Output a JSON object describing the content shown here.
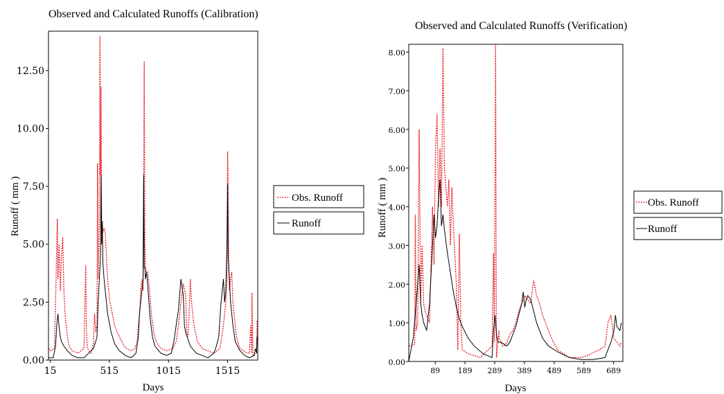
{
  "chart_data": [
    {
      "type": "line",
      "title": "Observed and Calculated Runoffs (Calibration)",
      "xlabel": "Days",
      "ylabel": "Runoff ( mm )",
      "xlim": [
        0,
        1770
      ],
      "ylim": [
        0,
        14.2
      ],
      "x_ticks": [
        15,
        515,
        1015,
        1515
      ],
      "x_tick_labels": [
        "15",
        "515",
        "1015",
        "1515"
      ],
      "y_ticks": [
        0,
        2.5,
        5,
        7.5,
        10,
        12.5
      ],
      "y_tick_labels": [
        "0.00",
        "2.50",
        "5.00",
        "7.50",
        "10.00",
        "12.50"
      ],
      "legend_position": "right",
      "series": [
        {
          "name": "Obs. Runoff",
          "color": "#e8141b",
          "style": "dotted",
          "x": [
            0,
            20,
            50,
            60,
            75,
            80,
            90,
            100,
            110,
            120,
            130,
            140,
            150,
            160,
            175,
            200,
            250,
            300,
            315,
            320,
            325,
            330,
            360,
            380,
            390,
            400,
            410,
            415,
            420,
            430,
            435,
            440,
            445,
            450,
            455,
            460,
            470,
            480,
            490,
            500,
            520,
            540,
            560,
            580,
            600,
            620,
            640,
            660,
            700,
            730,
            750,
            760,
            770,
            780,
            790,
            800,
            810,
            815,
            820,
            830,
            840,
            850,
            870,
            890,
            910,
            950,
            1000,
            1050,
            1080,
            1100,
            1120,
            1140,
            1160,
            1170,
            1180,
            1190,
            1200,
            1210,
            1230,
            1260,
            1300,
            1350,
            1400,
            1450,
            1480,
            1500,
            1510,
            1515,
            1520,
            1525,
            1530,
            1540,
            1550,
            1560,
            1570,
            1580,
            1590,
            1600,
            1620,
            1650,
            1680,
            1700,
            1710,
            1720,
            1721,
            1730,
            1760,
            1765
          ],
          "values": [
            0.5,
            0.4,
            0.5,
            2.5,
            6.1,
            3.5,
            5.0,
            3.0,
            4.5,
            5.3,
            3.0,
            2.0,
            1.5,
            1.0,
            0.6,
            0.4,
            0.3,
            0.5,
            4.1,
            1.5,
            0.8,
            0.5,
            0.3,
            0.7,
            2.0,
            1.2,
            1.5,
            8.5,
            3.5,
            5.8,
            14.0,
            8.0,
            11.8,
            5.0,
            6.0,
            5.5,
            5.7,
            5.5,
            4.5,
            3.5,
            2.5,
            2.0,
            1.5,
            1.2,
            1.0,
            0.8,
            0.6,
            0.5,
            0.4,
            0.5,
            0.8,
            1.5,
            2.0,
            3.0,
            3.5,
            3.0,
            12.9,
            5.0,
            4.0,
            3.8,
            3.8,
            3.3,
            2.0,
            1.2,
            0.8,
            0.5,
            0.4,
            0.5,
            0.8,
            1.5,
            2.5,
            3.3,
            2.8,
            1.2,
            1.0,
            2.0,
            3.5,
            2.5,
            1.5,
            0.8,
            0.5,
            0.4,
            0.3,
            0.5,
            1.5,
            2.5,
            3.5,
            9.0,
            7.8,
            4.0,
            3.0,
            3.5,
            3.8,
            2.5,
            2.0,
            1.5,
            1.0,
            0.8,
            0.5,
            0.4,
            0.3,
            0.3,
            1.5,
            0.3,
            2.9,
            0.2,
            0.3,
            1.7
          ]
        },
        {
          "name": "Runoff",
          "color": "#000000",
          "style": "solid",
          "x": [
            0,
            40,
            60,
            70,
            80,
            90,
            100,
            110,
            130,
            160,
            200,
            250,
            300,
            320,
            340,
            360,
            380,
            400,
            410,
            420,
            430,
            440,
            445,
            450,
            455,
            460,
            470,
            480,
            500,
            530,
            560,
            600,
            650,
            700,
            740,
            760,
            770,
            780,
            790,
            800,
            805,
            810,
            815,
            820,
            830,
            840,
            850,
            860,
            880,
            900,
            950,
            1000,
            1040,
            1060,
            1080,
            1100,
            1120,
            1140,
            1150,
            1160,
            1180,
            1200,
            1250,
            1300,
            1350,
            1400,
            1420,
            1440,
            1460,
            1480,
            1490,
            1500,
            1510,
            1515,
            1520,
            1525,
            1530,
            1540,
            1560,
            1580,
            1620,
            1660,
            1700,
            1740,
            1750,
            1760,
            1765
          ],
          "values": [
            0.1,
            0.1,
            0.6,
            1.5,
            2.0,
            1.4,
            1.0,
            0.8,
            0.6,
            0.4,
            0.2,
            0.1,
            0.1,
            0.2,
            0.3,
            0.4,
            0.5,
            0.8,
            1.0,
            2.5,
            3.5,
            4.5,
            8.0,
            5.0,
            6.0,
            4.2,
            3.5,
            3.0,
            2.0,
            1.2,
            0.7,
            0.4,
            0.2,
            0.1,
            0.3,
            1.0,
            2.0,
            2.5,
            3.0,
            3.5,
            8.0,
            4.0,
            4.0,
            3.5,
            3.8,
            3.2,
            2.5,
            1.8,
            1.0,
            0.6,
            0.3,
            0.2,
            0.3,
            0.8,
            1.5,
            2.2,
            3.5,
            2.8,
            1.5,
            1.2,
            0.9,
            0.6,
            0.3,
            0.2,
            0.1,
            0.3,
            0.6,
            1.0,
            2.5,
            3.5,
            2.5,
            3.0,
            5.0,
            7.6,
            4.5,
            4.0,
            3.5,
            2.5,
            1.5,
            0.8,
            0.4,
            0.2,
            0.1,
            0.2,
            0.5,
            0.3,
            1.0
          ]
        }
      ]
    },
    {
      "type": "line",
      "title": "Observed and Calculated Runoffs (Verification)",
      "xlabel": "Days",
      "ylabel": "Runoff ( mm )",
      "xlim": [
        0,
        720
      ],
      "ylim": [
        0,
        8.2
      ],
      "x_ticks": [
        89,
        189,
        289,
        389,
        489,
        589,
        689
      ],
      "x_tick_labels": [
        "89",
        "189",
        "289",
        "389",
        "489",
        "589",
        "689"
      ],
      "y_ticks": [
        0,
        1,
        2,
        3,
        4,
        5,
        6,
        7,
        8
      ],
      "y_tick_labels": [
        "0.00",
        "1.00",
        "2.00",
        "3.00",
        "4.00",
        "5.00",
        "6.00",
        "7.00",
        "8.00"
      ],
      "legend_position": "right",
      "series": [
        {
          "name": "Obs. Runoff",
          "color": "#e8141b",
          "style": "dotted",
          "x": [
            0,
            10,
            20,
            22,
            25,
            30,
            35,
            40,
            45,
            50,
            55,
            60,
            70,
            80,
            85,
            90,
            95,
            100,
            105,
            110,
            115,
            120,
            125,
            130,
            135,
            140,
            145,
            150,
            160,
            165,
            170,
            175,
            180,
            200,
            240,
            280,
            285,
            288,
            292,
            295,
            300,
            303,
            305,
            310,
            315,
            320,
            330,
            340,
            350,
            360,
            370,
            380,
            390,
            400,
            410,
            420,
            430,
            440,
            450,
            460,
            470,
            480,
            500,
            540,
            580,
            600,
            640,
            660,
            670,
            680,
            690,
            700,
            710,
            715
          ],
          "values": [
            0.4,
            0.4,
            0.45,
            3.8,
            0.8,
            1.0,
            6.0,
            1.5,
            3.0,
            1.5,
            1.3,
            1.2,
            1.0,
            4.0,
            2.5,
            5.5,
            6.4,
            4.0,
            5.5,
            4.0,
            8.1,
            5.0,
            4.5,
            4.0,
            4.7,
            3.0,
            4.5,
            3.5,
            2.0,
            0.3,
            3.3,
            1.0,
            0.3,
            0.2,
            0.1,
            0.4,
            2.8,
            0.5,
            8.2,
            0.1,
            0.5,
            0.8,
            0.6,
            0.5,
            0.4,
            0.4,
            0.5,
            0.7,
            0.8,
            1.0,
            1.3,
            1.5,
            1.7,
            1.6,
            1.5,
            2.1,
            1.7,
            1.5,
            1.2,
            1.0,
            0.8,
            0.6,
            0.3,
            0.1,
            0.1,
            0.15,
            0.3,
            0.4,
            1.0,
            1.2,
            0.6,
            0.5,
            0.4,
            0.5
          ]
        },
        {
          "name": "Runoff",
          "color": "#000000",
          "style": "solid",
          "x": [
            0,
            5,
            15,
            25,
            35,
            40,
            45,
            50,
            55,
            60,
            70,
            80,
            85,
            90,
            95,
            100,
            105,
            110,
            115,
            120,
            130,
            140,
            150,
            160,
            170,
            180,
            200,
            220,
            250,
            280,
            285,
            290,
            295,
            300,
            310,
            320,
            330,
            340,
            350,
            360,
            370,
            380,
            385,
            390,
            395,
            400,
            410,
            420,
            430,
            440,
            450,
            470,
            500,
            540,
            580,
            620,
            660,
            670,
            680,
            690,
            695,
            700,
            710,
            715
          ],
          "values": [
            0.0,
            0.2,
            0.6,
            1.5,
            2.5,
            1.5,
            1.2,
            1.0,
            0.9,
            0.8,
            1.5,
            3.0,
            3.8,
            3.2,
            3.5,
            4.2,
            4.7,
            3.5,
            3.8,
            3.4,
            2.8,
            2.3,
            1.8,
            1.4,
            1.1,
            0.9,
            0.6,
            0.4,
            0.2,
            0.1,
            0.8,
            1.2,
            0.7,
            0.5,
            0.5,
            0.45,
            0.4,
            0.5,
            0.7,
            0.9,
            1.2,
            1.5,
            1.8,
            1.4,
            1.6,
            1.7,
            1.6,
            1.3,
            1.0,
            0.8,
            0.6,
            0.4,
            0.25,
            0.1,
            0.05,
            0.05,
            0.1,
            0.3,
            0.5,
            0.8,
            1.2,
            0.9,
            0.8,
            1.0
          ]
        }
      ]
    }
  ]
}
